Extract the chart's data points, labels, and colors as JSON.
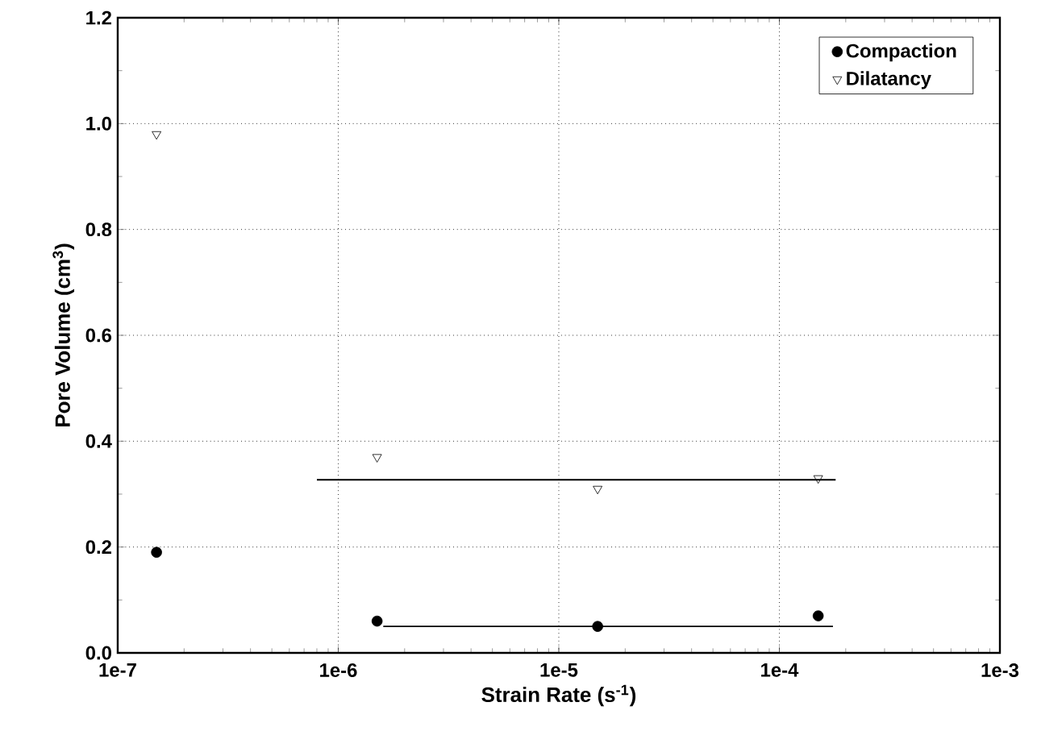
{
  "chart_data": {
    "type": "scatter",
    "xlabel": "Strain Rate (s$^{-1}$)",
    "ylabel": "Pore Volume (cm$^{3}$)",
    "log": "x",
    "grid": true,
    "legend": "top right",
    "xlim": [
      1e-07,
      0.001
    ],
    "ylim": [
      0,
      1.2
    ],
    "xticks": [
      {
        "value": 1e-07,
        "label": "1e-7"
      },
      {
        "value": 1e-06,
        "label": "1e-6"
      },
      {
        "value": 1e-05,
        "label": "1e-5"
      },
      {
        "value": 0.0001,
        "label": "1e-4"
      },
      {
        "value": 0.001,
        "label": "1e-3"
      }
    ],
    "yticks": [
      {
        "value": 0,
        "label": "0.0"
      },
      0.2,
      0.4,
      0.6,
      0.8,
      {
        "value": 1.0,
        "label": "1.0"
      },
      1.2
    ],
    "series": [
      {
        "name": "Compaction",
        "marker": "circle",
        "color": "#000000",
        "x": [
          1.5e-07,
          1.5e-06,
          1.5e-05,
          0.00015
        ],
        "values": [
          0.19,
          0.06,
          0.05,
          0.07
        ]
      },
      {
        "name": "Dilatancy",
        "marker": "triangle",
        "color": "#000000",
        "x": [
          1.5e-07,
          1.5e-06,
          1.5e-05,
          0.00015
        ],
        "values": [
          0.98,
          0.37,
          0.31,
          0.33
        ]
      },
      {
        "type": "line",
        "marker": "none",
        "line_style": "solid",
        "color": "#000000",
        "x": [
          8e-07,
          0.00018
        ],
        "values": [
          0.327,
          0.327
        ]
      },
      {
        "type": "line",
        "marker": "none",
        "line_style": "solid",
        "color": "#000000",
        "x": [
          1.6e-06,
          0.000175
        ],
        "values": [
          0.05,
          0.05
        ]
      }
    ]
  }
}
